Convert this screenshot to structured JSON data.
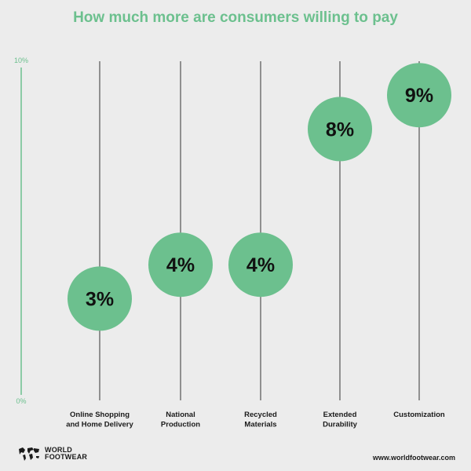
{
  "chart_data": {
    "type": "scatter",
    "title": "How much more are consumers willing to pay",
    "y_ticks": [
      "10%",
      "0%"
    ],
    "ylim": [
      0,
      10
    ],
    "categories": [
      [
        "Online Shopping",
        "and Home Delivery"
      ],
      [
        "National",
        "Production"
      ],
      [
        "Recycled",
        "Materials"
      ],
      [
        "Extended",
        "Durability"
      ],
      [
        "Customization"
      ]
    ],
    "values": [
      3,
      4,
      4,
      8,
      9
    ],
    "value_labels": [
      "3%",
      "4%",
      "4%",
      "8%",
      "9%"
    ],
    "point_color": "#6cc08e",
    "axis_color": "#6cc08e",
    "line_color": "#333333"
  },
  "footer": {
    "logo_line1": "WORLD",
    "logo_line2": "FOOTWEAR",
    "website": "www.worldfootwear.com"
  }
}
